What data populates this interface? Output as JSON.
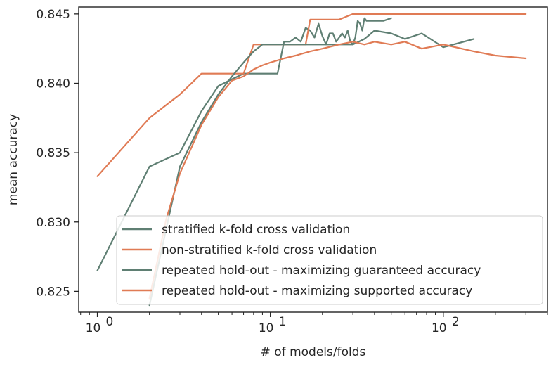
{
  "chart_data": {
    "type": "line",
    "title": "",
    "xlabel": "# of models/folds",
    "ylabel": "mean accuracy",
    "xscale": "log",
    "xlim": [
      0.78,
      400
    ],
    "ylim": [
      0.8235,
      0.8455
    ],
    "x_ticks": [
      {
        "value": 1,
        "base": "10",
        "exp": "0"
      },
      {
        "value": 10,
        "base": "10",
        "exp": "1"
      },
      {
        "value": 100,
        "base": "10",
        "exp": "2"
      }
    ],
    "y_ticks": [
      {
        "value": 0.825,
        "label": "0.825"
      },
      {
        "value": 0.83,
        "label": "0.830"
      },
      {
        "value": 0.835,
        "label": "0.835"
      },
      {
        "value": 0.84,
        "label": "0.840"
      },
      {
        "value": 0.845,
        "label": "0.845"
      }
    ],
    "grid": false,
    "legend_position": "lower-right",
    "series": [
      {
        "name": "stratified k-fold cross validation",
        "color": "#5f7f73",
        "x": [
          1,
          2,
          3,
          4,
          5,
          6,
          7,
          8,
          9,
          10,
          11,
          12,
          13,
          14,
          15,
          16,
          17,
          18,
          19,
          20,
          21,
          22,
          23,
          24,
          25,
          26,
          27,
          28,
          29,
          30,
          31,
          32,
          33,
          34,
          35,
          36,
          38,
          40,
          45,
          50
        ],
        "y": [
          0.8265,
          0.834,
          0.835,
          0.838,
          0.8398,
          0.8403,
          0.8407,
          0.8407,
          0.8407,
          0.8407,
          0.8407,
          0.843,
          0.843,
          0.8433,
          0.843,
          0.844,
          0.8438,
          0.8433,
          0.8443,
          0.8434,
          0.8428,
          0.8436,
          0.8436,
          0.843,
          0.8433,
          0.8436,
          0.8433,
          0.8438,
          0.843,
          0.8428,
          0.8433,
          0.8445,
          0.8443,
          0.8438,
          0.8447,
          0.8445,
          0.8445,
          0.8445,
          0.8445,
          0.8447
        ]
      },
      {
        "name": "non-stratified k-fold cross validation",
        "color": "#e07b55",
        "x": [
          1,
          2,
          3,
          4,
          5,
          6,
          7,
          8,
          9,
          10,
          11,
          12,
          13,
          14,
          15,
          16,
          17,
          18,
          20,
          25,
          30,
          40,
          50,
          100,
          200,
          300
        ],
        "y": [
          0.8333,
          0.8375,
          0.8392,
          0.8407,
          0.8407,
          0.8407,
          0.8407,
          0.8428,
          0.8428,
          0.8428,
          0.8428,
          0.8428,
          0.8428,
          0.8428,
          0.8428,
          0.8428,
          0.8446,
          0.8446,
          0.8446,
          0.8446,
          0.845,
          0.845,
          0.845,
          0.845,
          0.845,
          0.845
        ]
      },
      {
        "name": "repeated hold-out - maximizing guaranteed accuracy",
        "color": "#5f7f73",
        "x": [
          2,
          2.5,
          3,
          4,
          5,
          6,
          7,
          8,
          9,
          10,
          12,
          14,
          17,
          20,
          25,
          30,
          35,
          40,
          50,
          60,
          75,
          100,
          150
        ],
        "y": [
          0.824,
          0.8295,
          0.834,
          0.8372,
          0.8392,
          0.8405,
          0.8415,
          0.8423,
          0.8428,
          0.8428,
          0.8428,
          0.8428,
          0.8428,
          0.8428,
          0.8428,
          0.8428,
          0.8432,
          0.8438,
          0.8436,
          0.8432,
          0.8436,
          0.8426,
          0.8432
        ]
      },
      {
        "name": "repeated hold-out - maximizing supported accuracy",
        "color": "#e07b55",
        "x": [
          2,
          2.5,
          3,
          4,
          5,
          6,
          7,
          8,
          9,
          10,
          12,
          14,
          17,
          20,
          25,
          30,
          35,
          40,
          50,
          60,
          75,
          100,
          150,
          200,
          300
        ],
        "y": [
          0.8245,
          0.8302,
          0.8335,
          0.837,
          0.839,
          0.8402,
          0.8405,
          0.841,
          0.8413,
          0.8415,
          0.8418,
          0.842,
          0.8423,
          0.8425,
          0.8428,
          0.843,
          0.8428,
          0.843,
          0.8428,
          0.843,
          0.8425,
          0.8428,
          0.8423,
          0.842,
          0.8418
        ]
      }
    ]
  }
}
